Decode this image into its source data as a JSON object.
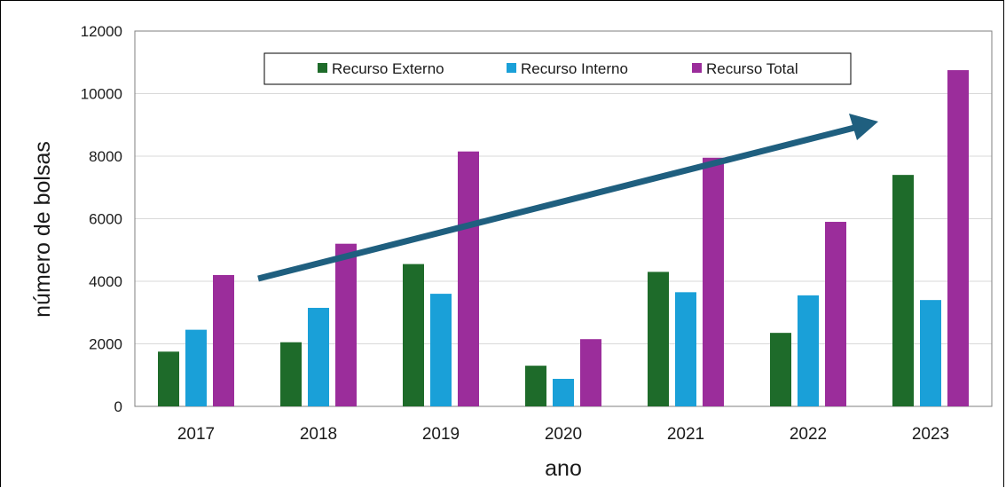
{
  "chart_data": {
    "type": "bar",
    "title": "",
    "xlabel": "ano",
    "ylabel": "número de bolsas",
    "categories": [
      "2017",
      "2018",
      "2019",
      "2020",
      "2021",
      "2022",
      "2023"
    ],
    "series": [
      {
        "name": "Recurso Externo",
        "color": "#1e6b2a",
        "values": [
          1750,
          2050,
          4550,
          1300,
          4300,
          2350,
          7400
        ]
      },
      {
        "name": "Recurso Interno",
        "color": "#1aa0d8",
        "values": [
          2450,
          3150,
          3600,
          880,
          3650,
          3550,
          3400
        ]
      },
      {
        "name": "Recurso Total",
        "color": "#9b2d9b",
        "values": [
          4200,
          5200,
          8150,
          2150,
          7950,
          5900,
          10750
        ]
      }
    ],
    "ylim": [
      0,
      12000
    ],
    "yticks": [
      "0",
      "2000",
      "4000",
      "6000",
      "8000",
      "10000",
      "12000"
    ],
    "grid": true,
    "legend_position": "top-center",
    "annotation": {
      "type": "trend-arrow",
      "color": "#1f5f7f"
    }
  }
}
